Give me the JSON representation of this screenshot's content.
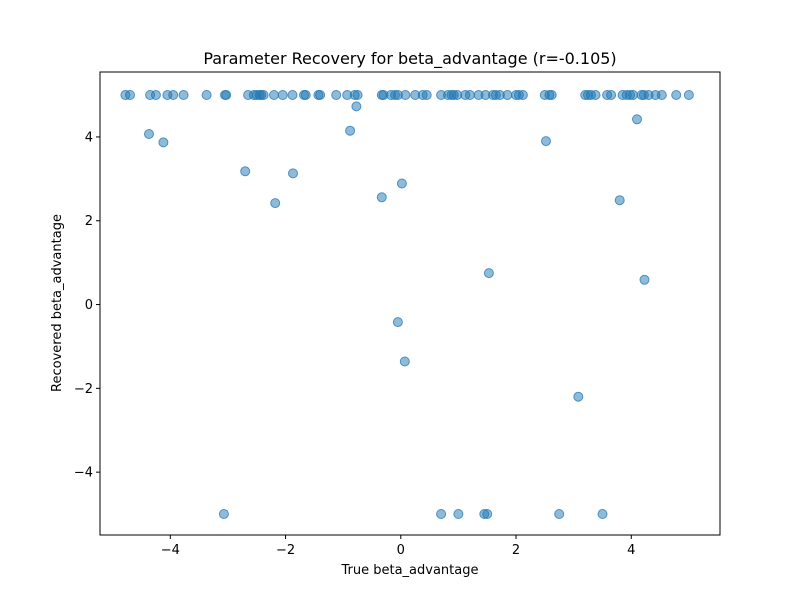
{
  "chart_data": {
    "type": "scatter",
    "title": "Parameter Recovery for beta_advantage (r=-0.105)",
    "xlabel": "True beta_advantage",
    "ylabel": "Recovered beta_advantage",
    "xlim": [
      -5.22,
      5.54
    ],
    "ylim": [
      -5.5,
      5.55
    ],
    "xticks": [
      -4,
      -2,
      0,
      2,
      4
    ],
    "xtick_labels": [
      "−4",
      "−2",
      "0",
      "2",
      "4"
    ],
    "yticks": [
      -4,
      -2,
      0,
      2,
      4
    ],
    "ytick_labels": [
      "−4",
      "−2",
      "0",
      "2",
      "4"
    ],
    "grid": false,
    "marker_color": "#1f77b4",
    "marker_alpha": 0.5,
    "points": [
      {
        "x": -4.78,
        "y": 5.0
      },
      {
        "x": -4.7,
        "y": 5.0
      },
      {
        "x": -4.35,
        "y": 5.0
      },
      {
        "x": -4.25,
        "y": 5.0
      },
      {
        "x": -4.05,
        "y": 5.0
      },
      {
        "x": -3.95,
        "y": 5.0
      },
      {
        "x": -3.77,
        "y": 5.0
      },
      {
        "x": -3.37,
        "y": 5.0
      },
      {
        "x": -3.05,
        "y": 5.0
      },
      {
        "x": -3.03,
        "y": 5.0
      },
      {
        "x": -2.65,
        "y": 5.0
      },
      {
        "x": -2.55,
        "y": 5.0
      },
      {
        "x": -2.5,
        "y": 5.0
      },
      {
        "x": -2.45,
        "y": 5.0
      },
      {
        "x": -2.42,
        "y": 5.0
      },
      {
        "x": -2.38,
        "y": 5.0
      },
      {
        "x": -2.2,
        "y": 5.0
      },
      {
        "x": -2.05,
        "y": 5.0
      },
      {
        "x": -1.88,
        "y": 5.0
      },
      {
        "x": -1.68,
        "y": 5.0
      },
      {
        "x": -1.65,
        "y": 5.0
      },
      {
        "x": -1.43,
        "y": 5.0
      },
      {
        "x": -1.4,
        "y": 5.0
      },
      {
        "x": -1.12,
        "y": 5.0
      },
      {
        "x": -0.93,
        "y": 5.0
      },
      {
        "x": -0.8,
        "y": 5.0
      },
      {
        "x": -0.75,
        "y": 5.0
      },
      {
        "x": -0.33,
        "y": 5.0
      },
      {
        "x": -0.3,
        "y": 5.0
      },
      {
        "x": -0.17,
        "y": 5.0
      },
      {
        "x": -0.1,
        "y": 5.0
      },
      {
        "x": -0.05,
        "y": 5.0
      },
      {
        "x": 0.08,
        "y": 5.0
      },
      {
        "x": 0.25,
        "y": 5.0
      },
      {
        "x": 0.38,
        "y": 5.0
      },
      {
        "x": 0.45,
        "y": 5.0
      },
      {
        "x": 0.7,
        "y": 5.0
      },
      {
        "x": 0.82,
        "y": 5.0
      },
      {
        "x": 0.88,
        "y": 5.0
      },
      {
        "x": 0.92,
        "y": 5.0
      },
      {
        "x": 0.98,
        "y": 5.0
      },
      {
        "x": 1.12,
        "y": 5.0
      },
      {
        "x": 1.2,
        "y": 5.0
      },
      {
        "x": 1.35,
        "y": 5.0
      },
      {
        "x": 1.47,
        "y": 5.0
      },
      {
        "x": 1.6,
        "y": 5.0
      },
      {
        "x": 1.65,
        "y": 5.0
      },
      {
        "x": 1.72,
        "y": 5.0
      },
      {
        "x": 1.85,
        "y": 5.0
      },
      {
        "x": 2.0,
        "y": 5.0
      },
      {
        "x": 2.05,
        "y": 5.0
      },
      {
        "x": 2.12,
        "y": 5.0
      },
      {
        "x": 2.5,
        "y": 5.0
      },
      {
        "x": 2.58,
        "y": 5.0
      },
      {
        "x": 2.62,
        "y": 5.0
      },
      {
        "x": 3.2,
        "y": 5.0
      },
      {
        "x": 3.25,
        "y": 5.0
      },
      {
        "x": 3.3,
        "y": 5.0
      },
      {
        "x": 3.38,
        "y": 5.0
      },
      {
        "x": 3.58,
        "y": 5.0
      },
      {
        "x": 3.65,
        "y": 5.0
      },
      {
        "x": 3.85,
        "y": 5.0
      },
      {
        "x": 3.92,
        "y": 5.0
      },
      {
        "x": 3.98,
        "y": 5.0
      },
      {
        "x": 4.03,
        "y": 5.0
      },
      {
        "x": 4.18,
        "y": 5.0
      },
      {
        "x": 4.22,
        "y": 5.0
      },
      {
        "x": 4.3,
        "y": 5.0
      },
      {
        "x": 4.42,
        "y": 5.0
      },
      {
        "x": 4.53,
        "y": 5.0
      },
      {
        "x": 4.78,
        "y": 5.0
      },
      {
        "x": 5.0,
        "y": 5.0
      },
      {
        "x": -4.37,
        "y": 4.07
      },
      {
        "x": -4.12,
        "y": 3.87
      },
      {
        "x": -2.7,
        "y": 3.18
      },
      {
        "x": -2.18,
        "y": 2.42
      },
      {
        "x": -1.87,
        "y": 3.13
      },
      {
        "x": -0.88,
        "y": 4.15
      },
      {
        "x": -0.77,
        "y": 4.73
      },
      {
        "x": -0.33,
        "y": 2.56
      },
      {
        "x": 0.02,
        "y": 2.89
      },
      {
        "x": -0.05,
        "y": -0.42
      },
      {
        "x": 0.07,
        "y": -1.36
      },
      {
        "x": 1.53,
        "y": 0.75
      },
      {
        "x": 2.52,
        "y": 3.9
      },
      {
        "x": 3.08,
        "y": -2.2
      },
      {
        "x": 3.8,
        "y": 2.49
      },
      {
        "x": 4.1,
        "y": 4.42
      },
      {
        "x": 4.23,
        "y": 0.59
      },
      {
        "x": -3.07,
        "y": -5.0
      },
      {
        "x": 0.7,
        "y": -5.0
      },
      {
        "x": 1.0,
        "y": -5.0
      },
      {
        "x": 1.45,
        "y": -5.0
      },
      {
        "x": 1.5,
        "y": -5.0
      },
      {
        "x": 2.75,
        "y": -5.0
      },
      {
        "x": 3.5,
        "y": -5.0
      }
    ]
  }
}
